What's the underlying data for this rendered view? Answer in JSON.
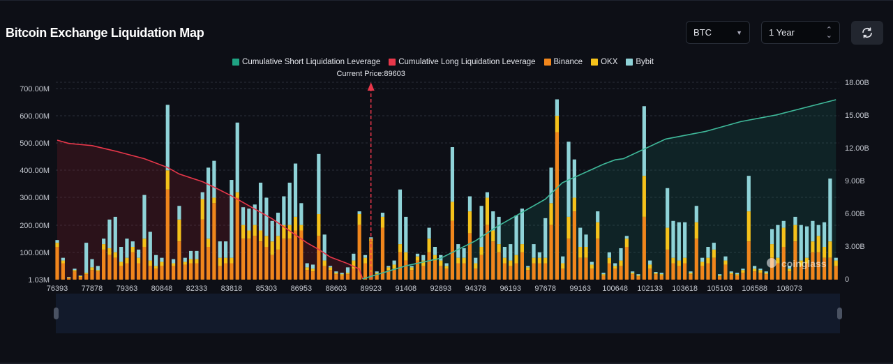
{
  "header": {
    "title": "Bitcoin Exchange Liquidation Map"
  },
  "controls": {
    "symbol": "BTC",
    "range": "1 Year",
    "refresh_icon": "refresh-icon"
  },
  "watermark": "coinglass",
  "chart_data": {
    "type": "bar",
    "stacked": true,
    "grid": true,
    "legend_position": "top",
    "legend": [
      {
        "name": "Cumulative Short Liquidation Leverage",
        "color": "#1fa383"
      },
      {
        "name": "Cumulative Long Liquidation Leverage",
        "color": "#e8374a"
      },
      {
        "name": "Binance",
        "color": "#f0861c"
      },
      {
        "name": "OKX",
        "color": "#f5c21b"
      },
      {
        "name": "Bybit",
        "color": "#8fd3d8"
      }
    ],
    "current_price_label": "Current Price:89603",
    "current_price": 89603,
    "x_tick_labels": [
      "76393",
      "77878",
      "79363",
      "80848",
      "82333",
      "83818",
      "85303",
      "86953",
      "88603",
      "89923",
      "91408",
      "92893",
      "94378",
      "96193",
      "97678",
      "99163",
      "100648",
      "102133",
      "103618",
      "105103",
      "106588",
      "108073"
    ],
    "y_left_tick_labels": [
      "1.03M",
      "100.00M",
      "200.00M",
      "300.00M",
      "400.00M",
      "500.00M",
      "600.00M",
      "700.00M"
    ],
    "y_left_unit": "M",
    "y_left_range": [
      1.03,
      700
    ],
    "y_right_tick_labels": [
      "0",
      "3.00B",
      "6.00B",
      "9.00B",
      "12.00B",
      "15.00B",
      "18.00B"
    ],
    "y_right_unit": "B",
    "y_right_range": [
      0,
      18
    ],
    "series": [
      {
        "name": "Binance",
        "values": [
          120,
          60,
          6,
          30,
          10,
          20,
          35,
          30,
          110,
          90,
          80,
          50,
          60,
          100,
          60,
          120,
          50,
          40,
          50,
          330,
          50,
          140,
          55,
          60,
          60,
          220,
          120,
          280,
          50,
          60,
          60,
          300,
          150,
          150,
          160,
          140,
          120,
          90,
          110,
          150,
          150,
          180,
          180,
          35,
          30,
          160,
          50,
          35,
          20,
          15,
          20,
          40,
          200,
          60,
          140,
          20,
          190,
          35,
          40,
          100,
          70,
          35,
          70,
          50,
          100,
          70,
          50,
          40,
          215,
          60,
          60,
          170,
          40,
          90,
          200,
          140,
          100,
          60,
          50,
          60,
          100,
          35,
          60,
          60,
          60,
          200,
          540,
          40,
          150,
          250,
          80,
          80,
          40,
          150,
          15,
          60,
          40,
          50,
          120,
          20,
          12,
          230,
          40,
          20,
          15,
          110,
          60,
          50,
          60,
          20,
          150,
          50,
          60,
          80,
          12,
          55,
          20,
          15,
          25,
          140,
          30,
          25,
          20,
          80,
          60,
          120,
          30,
          140,
          50,
          60,
          100,
          100,
          80,
          80,
          50
        ]
      },
      {
        "name": "OKX",
        "values": [
          15,
          10,
          2,
          5,
          3,
          5,
          10,
          5,
          20,
          25,
          20,
          15,
          20,
          20,
          20,
          30,
          20,
          10,
          15,
          70,
          10,
          80,
          10,
          15,
          15,
          75,
          30,
          20,
          30,
          20,
          20,
          20,
          50,
          30,
          40,
          40,
          40,
          50,
          50,
          50,
          50,
          50,
          20,
          10,
          10,
          80,
          20,
          10,
          5,
          5,
          5,
          30,
          40,
          20,
          10,
          5,
          40,
          10,
          15,
          30,
          30,
          10,
          15,
          20,
          50,
          20,
          20,
          10,
          70,
          20,
          20,
          80,
          20,
          30,
          100,
          40,
          30,
          20,
          20,
          30,
          30,
          10,
          20,
          20,
          20,
          80,
          60,
          20,
          80,
          50,
          40,
          40,
          15,
          60,
          5,
          20,
          10,
          20,
          30,
          5,
          4,
          150,
          15,
          4,
          5,
          80,
          20,
          20,
          20,
          5,
          60,
          15,
          20,
          30,
          4,
          15,
          5,
          5,
          10,
          110,
          10,
          10,
          5,
          50,
          20,
          70,
          10,
          60,
          20,
          20,
          40,
          60,
          40,
          60,
          20
        ]
      },
      {
        "name": "Bybit",
        "values": [
          10,
          10,
          2,
          5,
          2,
          110,
          30,
          15,
          20,
          105,
          130,
          55,
          70,
          20,
          30,
          160,
          105,
          40,
          15,
          240,
          15,
          50,
          15,
          30,
          30,
          25,
          260,
          135,
          60,
          60,
          285,
          255,
          65,
          80,
          75,
          175,
          140,
          75,
          85,
          105,
          155,
          195,
          80,
          15,
          15,
          220,
          95,
          5,
          5,
          5,
          20,
          25,
          10,
          10,
          5,
          5,
          15,
          5,
          15,
          200,
          130,
          5,
          10,
          20,
          40,
          30,
          20,
          10,
          200,
          50,
          35,
          55,
          20,
          150,
          20,
          70,
          100,
          40,
          60,
          145,
          130,
          5,
          50,
          20,
          145,
          130,
          60,
          25,
          275,
          140,
          70,
          45,
          10,
          40,
          5,
          20,
          10,
          45,
          10,
          5,
          4,
          255,
          15,
          4,
          5,
          145,
          135,
          140,
          130,
          5,
          60,
          15,
          40,
          25,
          4,
          15,
          5,
          5,
          5,
          130,
          10,
          5,
          5,
          55,
          120,
          25,
          10,
          30,
          130,
          115,
          75,
          40,
          90,
          230,
          10
        ]
      },
      {
        "name": "Cumulative Long Liquidation Leverage",
        "axis": "right",
        "points": [
          [
            76393,
            12.7
          ],
          [
            76888,
            12.4
          ],
          [
            77878,
            12.2
          ],
          [
            78868,
            11.7
          ],
          [
            80105,
            11.0
          ],
          [
            81095,
            10.2
          ],
          [
            81590,
            9.6
          ],
          [
            82580,
            8.9
          ],
          [
            83075,
            8.4
          ],
          [
            83818,
            7.6
          ],
          [
            84560,
            6.7
          ],
          [
            85578,
            5.5
          ],
          [
            86403,
            4.4
          ],
          [
            87228,
            3.3
          ],
          [
            87778,
            2.7
          ],
          [
            88328,
            2.0
          ],
          [
            89043,
            1.4
          ],
          [
            89483,
            0.9
          ],
          [
            89603,
            0
          ]
        ]
      },
      {
        "name": "Cumulative Short Liquidation Leverage",
        "axis": "right",
        "points": [
          [
            89603,
            0
          ],
          [
            91408,
            1.2
          ],
          [
            92893,
            1.9
          ],
          [
            94378,
            3.5
          ],
          [
            95500,
            4.8
          ],
          [
            97678,
            7.3
          ],
          [
            98400,
            8.8
          ],
          [
            100150,
            10.5
          ],
          [
            100648,
            10.9
          ],
          [
            101000,
            11.0
          ],
          [
            102800,
            12.8
          ],
          [
            104500,
            13.5
          ],
          [
            106000,
            14.4
          ],
          [
            107500,
            15.0
          ],
          [
            110053,
            16.4
          ]
        ]
      }
    ]
  }
}
